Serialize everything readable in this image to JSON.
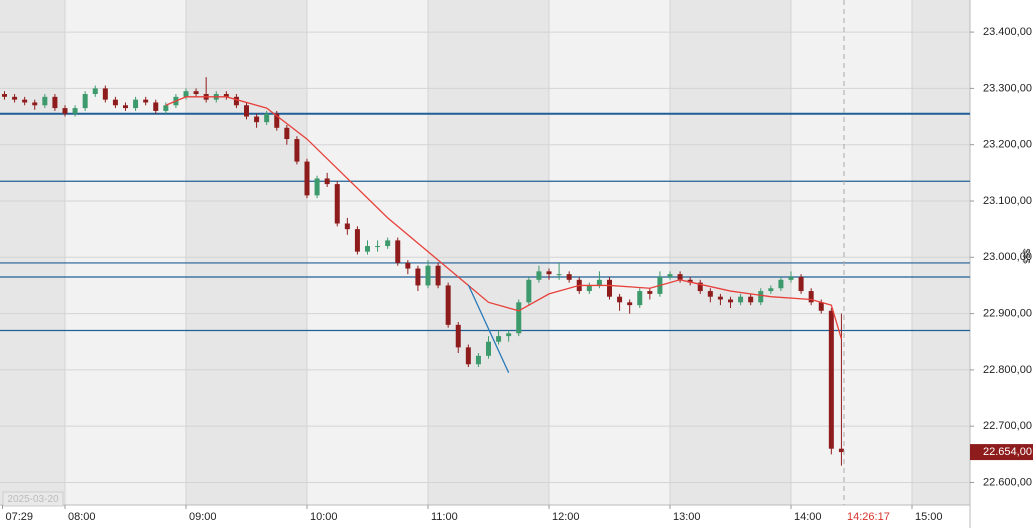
{
  "chart_data": {
    "type": "candlestick",
    "date_label": "2025-03-20",
    "currency_marker": "$$$",
    "x": [
      "07:30",
      "07:35",
      "07:40",
      "07:45",
      "07:50",
      "07:55",
      "08:00",
      "08:05",
      "08:10",
      "08:15",
      "08:20",
      "08:25",
      "08:30",
      "08:35",
      "08:40",
      "08:45",
      "08:50",
      "08:55",
      "09:00",
      "09:05",
      "09:10",
      "09:15",
      "09:20",
      "09:25",
      "09:30",
      "09:35",
      "09:40",
      "09:45",
      "09:50",
      "09:55",
      "10:00",
      "10:05",
      "10:10",
      "10:15",
      "10:20",
      "10:25",
      "10:30",
      "10:35",
      "10:40",
      "10:45",
      "10:50",
      "10:55",
      "11:00",
      "11:05",
      "11:10",
      "11:15",
      "11:20",
      "11:25",
      "11:30",
      "11:35",
      "11:40",
      "11:45",
      "11:50",
      "11:55",
      "12:00",
      "12:05",
      "12:10",
      "12:15",
      "12:20",
      "12:25",
      "12:30",
      "12:35",
      "12:40",
      "12:45",
      "12:50",
      "12:55",
      "13:00",
      "13:05",
      "13:10",
      "13:15",
      "13:20",
      "13:25",
      "13:30",
      "13:35",
      "13:40",
      "13:45",
      "13:50",
      "13:55",
      "14:00",
      "14:05",
      "14:10",
      "14:15",
      "14:20",
      "14:25"
    ],
    "open": [
      23290,
      23285,
      23280,
      23275,
      23270,
      23285,
      23265,
      23255,
      23265,
      23290,
      23300,
      23280,
      23270,
      23265,
      23280,
      23275,
      23260,
      23270,
      23285,
      23295,
      23290,
      23280,
      23290,
      23285,
      23270,
      23250,
      23240,
      23255,
      23230,
      23210,
      23170,
      23110,
      23140,
      23130,
      23060,
      23050,
      23010,
      23020,
      23020,
      23030,
      22990,
      22980,
      22950,
      22985,
      22950,
      22880,
      22840,
      22810,
      22825,
      22850,
      22860,
      22865,
      22920,
      22960,
      22975,
      22970,
      22970,
      22960,
      22940,
      22950,
      22960,
      22930,
      22920,
      22915,
      22940,
      22935,
      22965,
      22970,
      22960,
      22955,
      22940,
      22930,
      22925,
      22920,
      22930,
      22920,
      22940,
      22945,
      22960,
      22965,
      22940,
      22920,
      22905,
      22660
    ],
    "high": [
      23295,
      23290,
      23285,
      23280,
      23290,
      23290,
      23270,
      23270,
      23295,
      23305,
      23305,
      23285,
      23275,
      23285,
      23285,
      23280,
      23275,
      23290,
      23300,
      23300,
      23320,
      23295,
      23295,
      23290,
      23275,
      23255,
      23260,
      23260,
      23235,
      23215,
      23175,
      23145,
      23150,
      23135,
      23070,
      23055,
      23030,
      23030,
      23035,
      23035,
      22995,
      22985,
      22995,
      22990,
      22955,
      22885,
      22845,
      22830,
      22860,
      22870,
      22870,
      22925,
      22965,
      22985,
      22980,
      22990,
      22975,
      22965,
      22955,
      22975,
      22965,
      22935,
      22925,
      22945,
      22945,
      22975,
      22975,
      22975,
      22965,
      22960,
      22945,
      22935,
      22930,
      22935,
      22935,
      22945,
      22950,
      22965,
      22975,
      22970,
      22945,
      22925,
      22910,
      22900
    ],
    "low": [
      23280,
      23275,
      23270,
      23262,
      23265,
      23260,
      23250,
      23250,
      23260,
      23285,
      23275,
      23265,
      23260,
      23260,
      23270,
      23255,
      23255,
      23265,
      23280,
      23285,
      23275,
      23275,
      23280,
      23265,
      23245,
      23230,
      23235,
      23225,
      23200,
      23165,
      23105,
      23105,
      23125,
      23055,
      23040,
      23005,
      23005,
      23010,
      23015,
      22985,
      22970,
      22940,
      22945,
      22945,
      22875,
      22830,
      22805,
      22805,
      22820,
      22845,
      22850,
      22860,
      22915,
      22955,
      22960,
      22960,
      22955,
      22935,
      22935,
      22945,
      22925,
      22905,
      22900,
      22910,
      22925,
      22930,
      22960,
      22955,
      22950,
      22935,
      22920,
      22915,
      22910,
      22915,
      22915,
      22915,
      22935,
      22940,
      22955,
      22935,
      22915,
      22900,
      22650,
      22630
    ],
    "close": [
      23285,
      23280,
      23275,
      23270,
      23285,
      23265,
      23255,
      23265,
      23290,
      23300,
      23280,
      23270,
      23265,
      23280,
      23275,
      23260,
      23270,
      23285,
      23295,
      23290,
      23280,
      23290,
      23285,
      23270,
      23250,
      23240,
      23255,
      23230,
      23210,
      23170,
      23110,
      23140,
      23130,
      23060,
      23050,
      23010,
      23020,
      23020,
      23030,
      22990,
      22980,
      22950,
      22985,
      22950,
      22880,
      22840,
      22810,
      22825,
      22850,
      22860,
      22865,
      22920,
      22960,
      22975,
      22970,
      22970,
      22960,
      22940,
      22950,
      22960,
      22930,
      22920,
      22915,
      22940,
      22935,
      22965,
      22970,
      22960,
      22955,
      22940,
      22930,
      22925,
      22920,
      22930,
      22920,
      22940,
      22945,
      22960,
      22965,
      22940,
      22920,
      22905,
      22660,
      22654
    ],
    "up_color": "#3d9a6c",
    "down_color": "#8e1c1c",
    "moving_average": {
      "color": "#e8403a",
      "x": [
        "08:50",
        "09:00",
        "09:20",
        "09:40",
        "10:00",
        "10:20",
        "10:40",
        "11:00",
        "11:20",
        "11:30",
        "11:45",
        "12:00",
        "12:15",
        "12:30",
        "12:50",
        "13:05",
        "13:30",
        "13:50",
        "14:10",
        "14:20",
        "14:25"
      ],
      "values": [
        23270,
        23285,
        23285,
        23265,
        23210,
        23140,
        23070,
        23010,
        22950,
        22920,
        22905,
        22935,
        22950,
        22950,
        22945,
        22960,
        22940,
        22930,
        22925,
        22915,
        22855
      ]
    },
    "levels": [
      23255,
      23135,
      22990,
      22965,
      22870
    ],
    "level_color": "#1f5f95",
    "trendline": {
      "color": "#2a7ab8",
      "x": [
        "11:20",
        "11:40"
      ],
      "values": [
        22951,
        22795
      ]
    },
    "last_price": {
      "value": 22654,
      "label": "22.654,00"
    },
    "current_time": "14:26:17",
    "ylim": [
      22560,
      23457
    ],
    "yticks": [
      {
        "value": 22600,
        "label": "22.600,00"
      },
      {
        "value": 22700,
        "label": "22.700,00"
      },
      {
        "value": 22800,
        "label": "22.800,00"
      },
      {
        "value": 22900,
        "label": "22.900,00"
      },
      {
        "value": 23000,
        "label": "23.000,00"
      },
      {
        "value": 23100,
        "label": "23.100,00"
      },
      {
        "value": 23200,
        "label": "23.200,00"
      },
      {
        "value": 23300,
        "label": "23.300,00"
      },
      {
        "value": 23400,
        "label": "23.400,00"
      }
    ],
    "xticks": [
      "07:29",
      "08:00",
      "09:00",
      "10:00",
      "11:00",
      "12:00",
      "13:00",
      "14:00",
      "15:00"
    ],
    "grid": true
  }
}
